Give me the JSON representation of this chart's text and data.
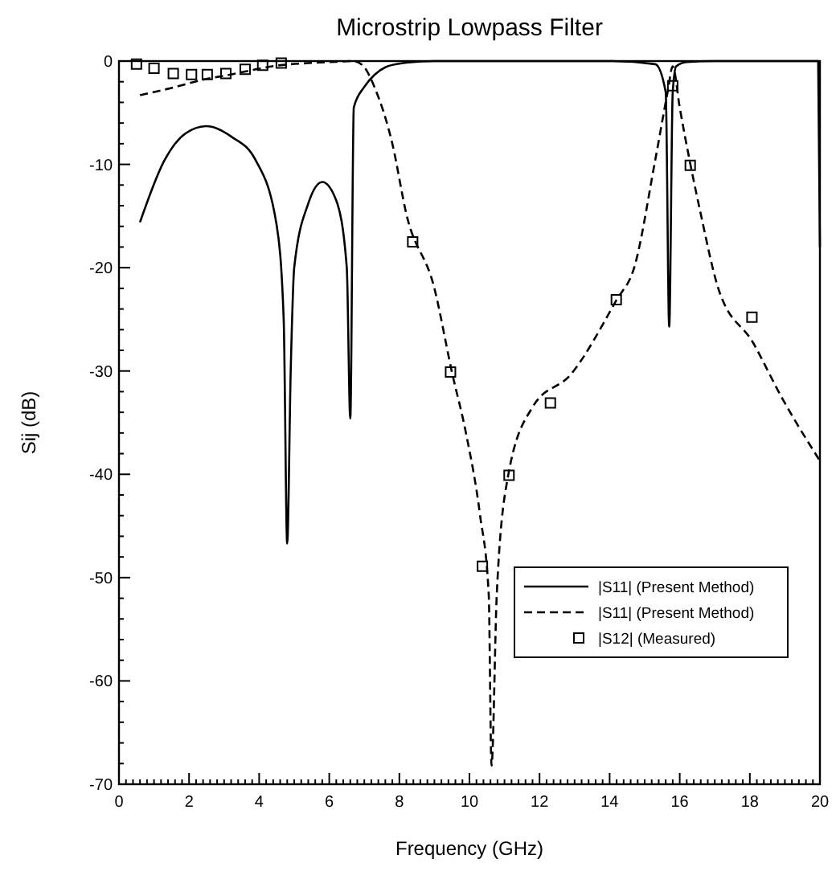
{
  "chart_data": {
    "type": "line",
    "title": "Microstrip Lowpass Filter",
    "xlabel": "Frequency (GHz)",
    "ylabel": "Sij (dB)",
    "xlim": [
      0,
      20
    ],
    "ylim": [
      -70,
      0
    ],
    "xticks": [
      0,
      2,
      4,
      6,
      8,
      10,
      12,
      14,
      16,
      18,
      20
    ],
    "yticks": [
      0,
      -10,
      -20,
      -30,
      -40,
      -50,
      -60,
      -70
    ],
    "grid": false,
    "legend": "bottom right",
    "series": [
      {
        "name": "|S11| (Present Method)",
        "color": "#000000",
        "line_style": "solid",
        "marker": "none",
        "x": [
          0.6,
          1.3,
          1.9,
          2.5,
          3.2,
          3.9,
          4.5,
          4.7,
          4.8,
          4.9,
          5.0,
          5.4,
          5.8,
          6.2,
          6.5,
          6.6,
          6.7,
          7.0,
          7.3,
          7.6,
          8.1,
          9,
          10,
          12,
          14,
          15.3,
          15.6,
          15.7,
          15.8,
          15.9,
          16.2,
          17,
          18,
          19,
          19.95,
          20
        ],
        "values": [
          -15.6,
          -9.6,
          -7,
          -6.3,
          -7.3,
          -9.6,
          -15.9,
          -25,
          -46.7,
          -30,
          -20,
          -13.8,
          -11.7,
          -13.5,
          -20,
          -34.6,
          -4.5,
          -2.5,
          -1.3,
          -0.6,
          -0.2,
          0,
          0,
          0,
          0,
          -0.3,
          -3,
          -25.7,
          -3,
          -0.5,
          -0.1,
          0,
          0,
          0,
          0,
          -18
        ]
      },
      {
        "name": "|S11| (Present Method)",
        "color": "#000000",
        "line_style": "dashed",
        "marker": "none",
        "x": [
          0.6,
          1.5,
          2.4,
          3.2,
          3.9,
          4.6,
          5.4,
          6.0,
          6.7,
          7.0,
          7.3,
          7.8,
          8.2,
          9.0,
          9.5,
          9.9,
          10.3,
          10.55,
          10.63,
          10.78,
          11.1,
          11.8,
          12.9,
          14.2,
          14.7,
          15.3,
          15.66,
          15.8,
          16.0,
          16.6,
          17.1,
          18.1,
          18.9,
          20
        ],
        "values": [
          -3.3,
          -2.6,
          -1.8,
          -1.3,
          -0.8,
          -0.4,
          -0.2,
          -0.1,
          0,
          -0.6,
          -2.6,
          -8,
          -14.8,
          -22,
          -30.1,
          -36,
          -43.9,
          -51.6,
          -68.2,
          -51.6,
          -40.2,
          -33.5,
          -30.3,
          -23.1,
          -20,
          -9.6,
          -2.9,
          -0.5,
          -4.5,
          -14.8,
          -22,
          -27.3,
          -32.5,
          -38.7
        ]
      },
      {
        "name": "|S12| (Measured)",
        "type": "scatter",
        "color": "#000000",
        "marker": "square",
        "x": [
          0.5,
          1.0,
          1.55,
          2.07,
          2.52,
          3.05,
          3.6,
          4.1,
          4.63,
          8.38,
          9.46,
          10.37,
          11.13,
          12.31,
          14.19,
          15.8,
          16.3,
          18.06
        ],
        "values": [
          -0.3,
          -0.7,
          -1.2,
          -1.3,
          -1.3,
          -1.2,
          -0.8,
          -0.4,
          -0.2,
          -17.5,
          -30.1,
          -48.9,
          -40.1,
          -33.1,
          -23.1,
          -2.4,
          -10.1,
          -24.8
        ]
      }
    ]
  }
}
